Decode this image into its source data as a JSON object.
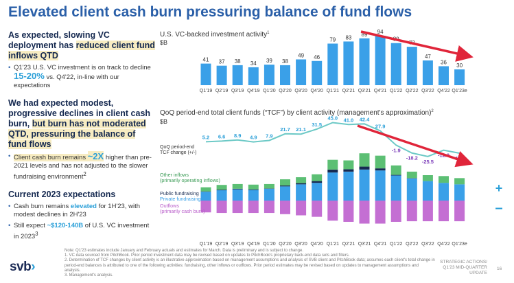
{
  "title": "Elevated client cash burn pressuring balance of fund flows",
  "left": {
    "s1": {
      "h_a": "As expected, slowing VC deployment has ",
      "h_hl": "reduced client fund inflows QTD",
      "b1_a": "Q1'23 U.S. VC investment is on track to decline ",
      "b1_big": "15-20%",
      "b1_b": " vs. Q4'22, in-line with our expectations"
    },
    "s2": {
      "h_a": "We had expected modest, progressive declines in client cash burn, ",
      "h_hl": "but burn has not moderated QTD, pressuring the balance of fund flows",
      "b1_a": "Client cash burn remains ",
      "b1_big": "~2X",
      "b1_b": " higher than pre-2021 levels and has not adjusted to the slower fundraising environment",
      "b1_sup": "2"
    },
    "s3": {
      "h": "Current 2023 expectations",
      "b1_a": "Cash burn remains ",
      "b1_blue": "elevated",
      "b1_b": " for 1H'23, with modest declines in 2H'23",
      "b2_a": "Still expect ",
      "b2_blue": "~$120-140B",
      "b2_b": " of U.S. VC investment in 2023",
      "b2_sup": "3"
    }
  },
  "chart_data": [
    {
      "type": "bar",
      "title": "U.S. VC-backed investment activity",
      "title_sup": "1",
      "ylabel": "$B",
      "categories": [
        "Q1'19",
        "Q2'19",
        "Q3'19",
        "Q4'19",
        "Q1'20",
        "Q2'20",
        "Q3'20",
        "Q4'20",
        "Q1'21",
        "Q2'21",
        "Q3'21",
        "Q4'21",
        "Q1'22",
        "Q2'22",
        "Q3'22",
        "Q4'22",
        "Q1'23e"
      ],
      "values": [
        41,
        37,
        38,
        34,
        39,
        38,
        49,
        46,
        79,
        83,
        89,
        94,
        80,
        73,
        47,
        36,
        30
      ],
      "color": "#3aa0e8",
      "trend_arrow": "red, from Q4'21 to Q1'23e"
    },
    {
      "type": "bar",
      "stacked": true,
      "title": "QoQ period-end total client funds (“TCF”) by client activity (management's approximation)",
      "title_sup": "2",
      "ylabel": "$B",
      "categories": [
        "Q1'19",
        "Q2'19",
        "Q3'19",
        "Q4'19",
        "Q1'20",
        "Q2'20",
        "Q3'20",
        "Q4'20",
        "Q1'21",
        "Q2'21",
        "Q3'21",
        "Q4'21",
        "Q1'22",
        "Q2'22",
        "Q3'22",
        "Q4'22",
        "Q1'23e"
      ],
      "series": [
        {
          "name": "Other inflows (primarily operating inflows)",
          "color": "#5cbf74",
          "values": [
            14,
            16,
            16,
            16,
            15,
            21,
            20,
            23,
            33,
            30,
            45,
            43,
            32,
            22,
            20,
            23,
            21
          ]
        },
        {
          "name": "Public fundraising",
          "color": "#162a52",
          "values": [
            1,
            2,
            2,
            2,
            1,
            3,
            4,
            6,
            10,
            8,
            10,
            7,
            2,
            1,
            0,
            0,
            0
          ]
        },
        {
          "name": "Private fundraising",
          "color": "#3aa0e8",
          "values": [
            30,
            35,
            38,
            36,
            40,
            48,
            55,
            60,
            95,
            98,
            105,
            102,
            85,
            75,
            66,
            60,
            55
          ]
        },
        {
          "name": "Outflows (primarily cash burn)",
          "color": "#c46fd3",
          "values": [
            -40,
            -42,
            -42,
            -42,
            -42,
            -46,
            -50,
            -55,
            -68,
            -72,
            -78,
            -78,
            -72,
            -70,
            -70,
            -70,
            -70
          ]
        }
      ],
      "line": {
        "name": "QoQ period-end TCF change (+/-)",
        "color": "#6cc9c6",
        "values": [
          5.2,
          6.6,
          8.9,
          4.9,
          7.9,
          21.7,
          21.1,
          31.5,
          45.0,
          41.0,
          42.4,
          27.9,
          -1.9,
          -18.2,
          -25.5,
          -12.3,
          -18.6
        ]
      },
      "trend_arrow": "red, from Q3'21 to Q1'23e"
    }
  ],
  "labels": {
    "tcf_change": "QoQ period-end TCF change (+/-)",
    "plus": "+",
    "minus": "–"
  },
  "notes": [
    "Note: Q1'23 estimates include January and February actuals and estimates for March. Data is preliminary and is subject to change.",
    "1. VC data sourced from PitchBook. Prior period investment data may be revised based on updates to PitchBook's proprietary back-end data sets and filters.",
    "2. Determination of TCF changes by client activity is an illustrative approximation based on management assumptions and analysis of SVB client and PitchBook data; assumes each client's total change in period-end balances is attributed to one of the following activities: fundraising, other inflows or outflows. Prior period estimates may be revised based on updates to management assumptions and analysis.",
    "3. Management's analysis."
  ],
  "logo": {
    "text": "svb",
    "mark": "›"
  },
  "footer": {
    "line1": "STRATEGIC ACTIONS/",
    "line2": "Q1'23 MID-QUARTER UPDATE",
    "page": "16"
  },
  "colors": {
    "accent": "#2a5fa8",
    "highlight": "#f7ecc2",
    "arrow": "#e0253a"
  }
}
